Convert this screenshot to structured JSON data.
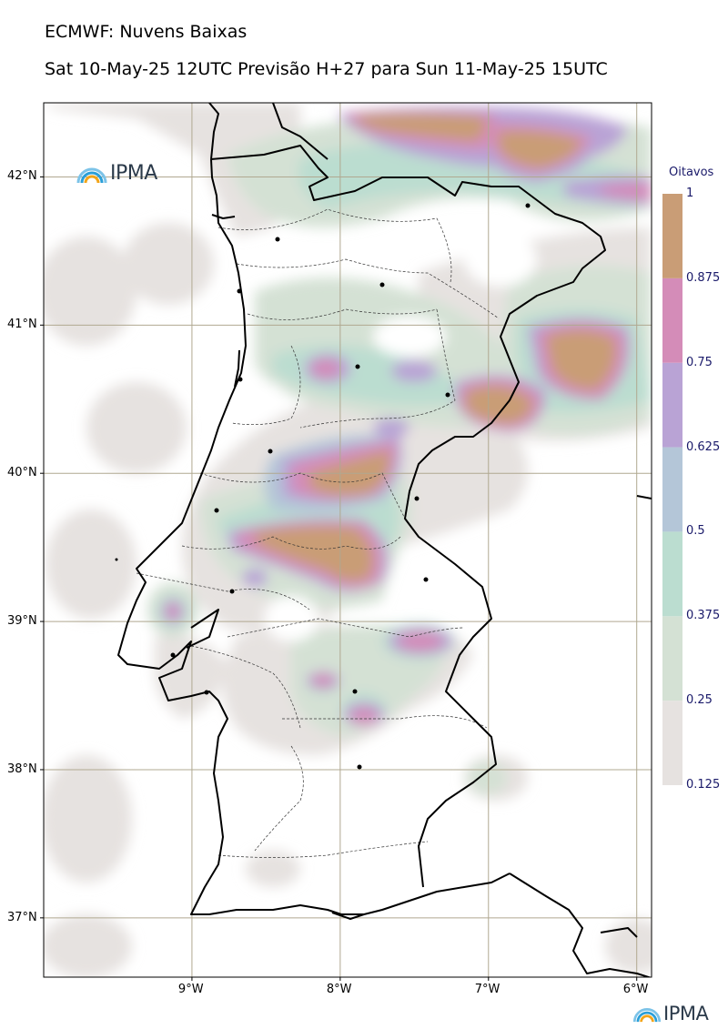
{
  "header": {
    "title": "ECMWF: Nuvens Baixas",
    "subtitle": "Sat 10-May-25 12UTC Previsão H+27 para Sun 11-May-25 15UTC"
  },
  "logo": {
    "text": "IPMA",
    "icon": "ipma-arc-icon"
  },
  "map": {
    "lon_range": [
      -10,
      -5.9
    ],
    "lat_range": [
      36.6,
      42.5
    ],
    "lon_ticks": [
      {
        "value": -9,
        "label": "9°W"
      },
      {
        "value": -8,
        "label": "8°W"
      },
      {
        "value": -7,
        "label": "7°W"
      },
      {
        "value": -6,
        "label": "6°W"
      }
    ],
    "lat_ticks": [
      {
        "value": 42,
        "label": "42°N"
      },
      {
        "value": 41,
        "label": "41°N"
      },
      {
        "value": 40,
        "label": "40°N"
      },
      {
        "value": 39,
        "label": "39°N"
      },
      {
        "value": 38,
        "label": "38°N"
      },
      {
        "value": 37,
        "label": "37°N"
      }
    ],
    "grid": true,
    "colors": {
      "c0125": "#e6e2e0",
      "c025": "#d4e1d4",
      "c0375": "#bbddd0",
      "c05": "#b4c6d8",
      "c0625": "#b9a3d5",
      "c075": "#d48cb8",
      "c0875": "#c99d76",
      "coast": "#000000",
      "grid": "#b0a890"
    }
  },
  "colorbar": {
    "title": "Oitavos",
    "levels": [
      {
        "label": "0.125",
        "color": "#e6e2e0"
      },
      {
        "label": "0.25",
        "color": "#d4e1d4"
      },
      {
        "label": "0.375",
        "color": "#bbddd0"
      },
      {
        "label": "0.5",
        "color": "#b4c6d8"
      },
      {
        "label": "0.625",
        "color": "#b9a3d5"
      },
      {
        "label": "0.75",
        "color": "#d48cb8"
      },
      {
        "label": "0.875",
        "color": "#c99d76"
      }
    ],
    "top_label": "1"
  }
}
